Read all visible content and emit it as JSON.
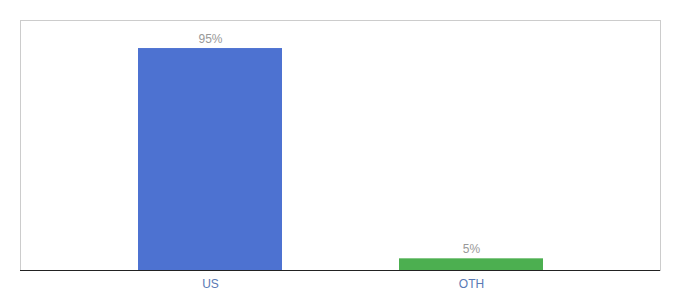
{
  "chart_data": {
    "type": "bar",
    "categories": [
      "US",
      "OTH"
    ],
    "values": [
      95,
      5
    ],
    "value_labels": [
      "95%",
      "5%"
    ],
    "colors": [
      "#4d72d1",
      "#4caf50"
    ],
    "ylim": [
      0,
      107
    ],
    "data_labels": true,
    "tick_labels": "x",
    "grid": false
  }
}
